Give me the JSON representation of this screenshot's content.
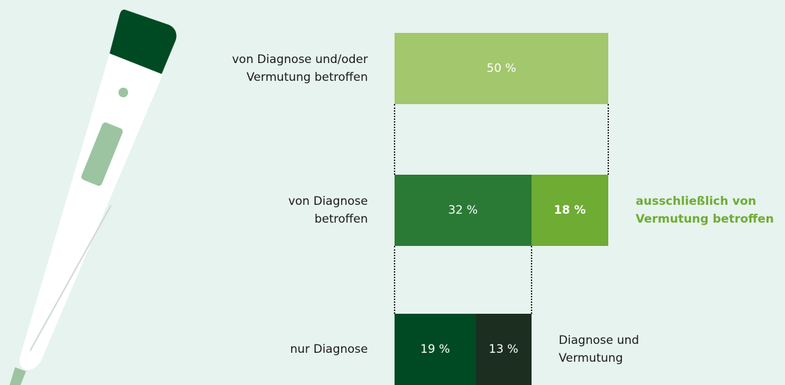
{
  "chart_data": {
    "type": "breakdown",
    "rows": [
      {
        "label": "von Diagnose und/oder\nVermutung betroffen",
        "segments": [
          {
            "value": 50,
            "value_label": "50 %",
            "color": "#a3c76d"
          }
        ]
      },
      {
        "label": "von Diagnose\nbetroffen",
        "segments": [
          {
            "value": 32,
            "value_label": "32 %",
            "color": "#2a7a35"
          },
          {
            "value": 18,
            "value_label": "18 %",
            "color": "#6eac33",
            "bold": true
          }
        ],
        "note": {
          "text": "ausschließlich von\nVermutung betroffen",
          "color": "#6eac33",
          "bold": true
        }
      },
      {
        "label": "nur Diagnose",
        "segments": [
          {
            "value": 19,
            "value_label": "19 %",
            "color": "#004a23"
          },
          {
            "value": 13,
            "value_label": "13 %",
            "color": "#1b2e20"
          }
        ],
        "note": {
          "text": "Diagnose und\nVermutung",
          "color": "#1a1a1a",
          "bold": false
        }
      }
    ]
  }
}
